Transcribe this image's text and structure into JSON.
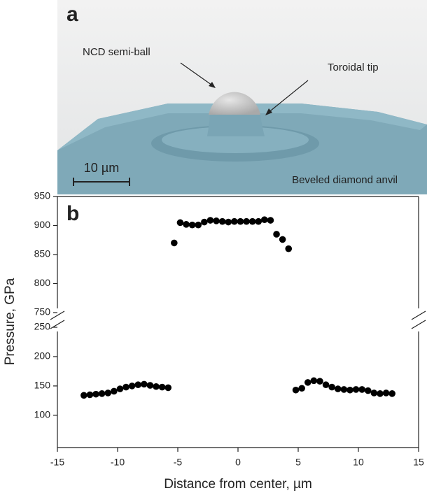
{
  "illustration": {
    "panel_label": "a",
    "ball_label": "NCD semi-ball",
    "tip_label": "Toroidal tip",
    "scale_label": "10 µm",
    "anvil_label": "Beveled diamond anvil"
  },
  "chart_data": {
    "type": "scatter",
    "panel_label": "b",
    "xlabel": "Distance from center, µm",
    "ylabel": "Pressure, GPa",
    "xlim": [
      -15,
      15
    ],
    "xticks": [
      -15,
      -10,
      -5,
      0,
      5,
      10,
      15
    ],
    "color": "#000000",
    "segments": [
      {
        "ylim": [
          750,
          950
        ],
        "yticks": [
          750,
          800,
          850,
          900,
          950
        ],
        "x": [
          -5.3,
          -4.8,
          -4.3,
          -3.8,
          -3.3,
          -2.8,
          -2.3,
          -1.8,
          -1.3,
          -0.8,
          -0.3,
          0.2,
          0.7,
          1.2,
          1.7,
          2.2,
          2.7,
          3.2,
          3.7,
          4.2
        ],
        "values": [
          870,
          905,
          902,
          901,
          901,
          906,
          909,
          908,
          907,
          906,
          907,
          907,
          907,
          907,
          907,
          910,
          909,
          885,
          876,
          860
        ]
      },
      {
        "ylim": [
          45,
          250
        ],
        "yticks": [
          100,
          150,
          200,
          250
        ],
        "x": [
          -12.8,
          -12.3,
          -11.8,
          -11.3,
          -10.8,
          -10.3,
          -9.8,
          -9.3,
          -8.8,
          -8.3,
          -7.8,
          -7.3,
          -6.8,
          -6.3,
          -5.8,
          4.8,
          5.3,
          5.8,
          6.3,
          6.8,
          7.3,
          7.8,
          8.3,
          8.8,
          9.3,
          9.8,
          10.3,
          10.8,
          11.3,
          11.8,
          12.3,
          12.8
        ],
        "values": [
          134,
          135,
          136,
          137,
          138,
          141,
          145,
          148,
          150,
          152,
          153,
          151,
          149,
          148,
          147,
          143,
          146,
          156,
          159,
          158,
          152,
          148,
          145,
          144,
          143,
          144,
          144,
          142,
          138,
          137,
          138,
          137
        ]
      }
    ]
  }
}
